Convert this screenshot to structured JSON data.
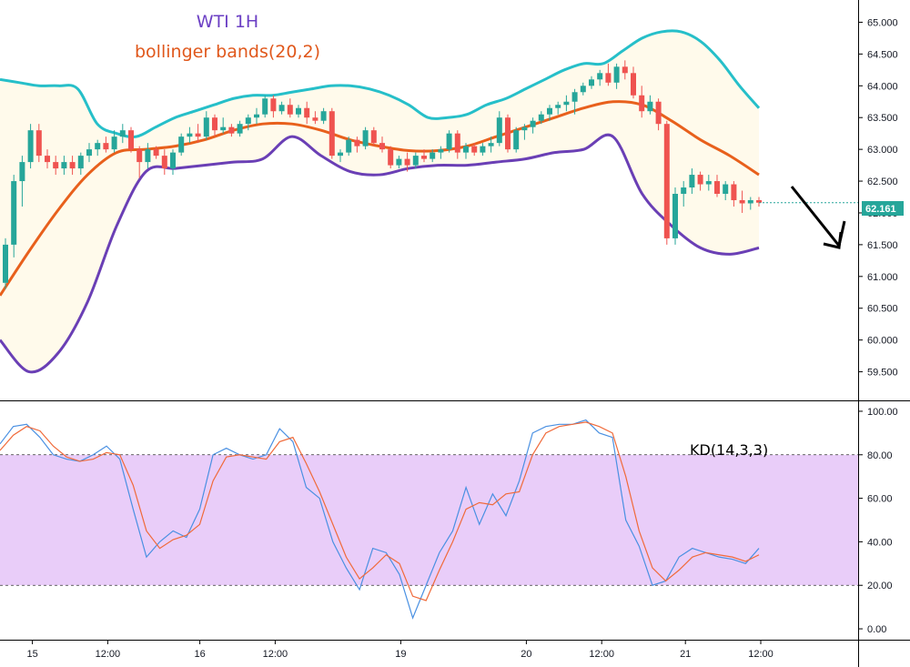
{
  "colors": {
    "upper_band": "#26bfc9",
    "middle_band": "#e8601c",
    "lower_band": "#6a3fb5",
    "band_fill": "#fffaeb",
    "candle_up": "#26a69a",
    "candle_down": "#ef5350",
    "k_line": "#4a90e2",
    "d_line": "#f06a3a",
    "kd_zone": "#e9cdf9",
    "price_label_bg": "#26a69a",
    "title1": "#6b3fc4",
    "title2": "#e0581c"
  },
  "chart_data": [
    {
      "type": "candlestick",
      "title": "WTI 1H",
      "subtitle": "bollinger bands(20,2)",
      "ylim": [
        59.05,
        65.35
      ],
      "y_ticks": [
        "59.500",
        "60.000",
        "60.500",
        "61.000",
        "61.500",
        "62.000",
        "62.500",
        "63.000",
        "63.500",
        "64.000",
        "64.500",
        "65.000"
      ],
      "current_price": "62.161",
      "x_labels": [
        "15",
        "12:00",
        "16",
        "12:00",
        "19",
        "20",
        "12:00",
        "21",
        "12:00"
      ],
      "x_label_bars": [
        3,
        12,
        23,
        32,
        47,
        62,
        71,
        81,
        90
      ],
      "candles": [
        [
          60.9,
          61.6,
          60.8,
          61.5
        ],
        [
          61.5,
          62.6,
          61.3,
          62.5
        ],
        [
          62.5,
          62.9,
          62.1,
          62.8
        ],
        [
          62.8,
          63.4,
          62.7,
          63.3
        ],
        [
          63.3,
          63.4,
          62.8,
          62.9
        ],
        [
          62.9,
          63.0,
          62.7,
          62.8
        ],
        [
          62.8,
          62.9,
          62.6,
          62.7
        ],
        [
          62.7,
          62.9,
          62.6,
          62.8
        ],
        [
          62.8,
          62.9,
          62.6,
          62.7
        ],
        [
          62.7,
          62.95,
          62.6,
          62.9
        ],
        [
          62.9,
          63.1,
          62.8,
          63.0
        ],
        [
          63.0,
          63.15,
          62.9,
          63.1
        ],
        [
          63.1,
          63.2,
          62.95,
          63.0
        ],
        [
          63.0,
          63.3,
          62.95,
          63.2
        ],
        [
          63.2,
          63.4,
          63.1,
          63.3
        ],
        [
          63.3,
          63.35,
          62.95,
          63.0
        ],
        [
          63.0,
          63.05,
          62.55,
          62.8
        ],
        [
          62.8,
          63.1,
          62.7,
          63.0
        ],
        [
          63.0,
          63.05,
          62.85,
          62.9
        ],
        [
          62.9,
          63.0,
          62.6,
          62.7
        ],
        [
          62.7,
          63.0,
          62.6,
          62.95
        ],
        [
          62.95,
          63.25,
          62.9,
          63.2
        ],
        [
          63.2,
          63.35,
          63.1,
          63.25
        ],
        [
          63.25,
          63.4,
          63.1,
          63.2
        ],
        [
          63.2,
          63.6,
          63.15,
          63.5
        ],
        [
          63.5,
          63.55,
          63.2,
          63.3
        ],
        [
          63.3,
          63.5,
          63.25,
          63.35
        ],
        [
          63.35,
          63.4,
          63.2,
          63.25
        ],
        [
          63.25,
          63.45,
          63.2,
          63.4
        ],
        [
          63.4,
          63.55,
          63.3,
          63.5
        ],
        [
          63.5,
          63.65,
          63.4,
          63.55
        ],
        [
          63.55,
          63.85,
          63.5,
          63.8
        ],
        [
          63.8,
          63.85,
          63.5,
          63.6
        ],
        [
          63.6,
          63.75,
          63.55,
          63.7
        ],
        [
          63.7,
          63.8,
          63.5,
          63.55
        ],
        [
          63.55,
          63.7,
          63.5,
          63.65
        ],
        [
          63.65,
          63.75,
          63.4,
          63.5
        ],
        [
          63.5,
          63.6,
          63.4,
          63.45
        ],
        [
          63.45,
          63.65,
          63.4,
          63.6
        ],
        [
          63.6,
          63.65,
          62.85,
          62.9
        ],
        [
          62.9,
          63.0,
          62.8,
          62.95
        ],
        [
          62.95,
          63.2,
          62.9,
          63.15
        ],
        [
          63.15,
          63.2,
          62.95,
          63.05
        ],
        [
          63.05,
          63.35,
          63.0,
          63.3
        ],
        [
          63.3,
          63.35,
          63.05,
          63.1
        ],
        [
          63.1,
          63.2,
          62.95,
          63.0
        ],
        [
          63.0,
          63.05,
          62.7,
          62.75
        ],
        [
          62.75,
          62.9,
          62.7,
          62.85
        ],
        [
          62.85,
          62.95,
          62.65,
          62.75
        ],
        [
          62.75,
          62.95,
          62.7,
          62.9
        ],
        [
          62.9,
          63.0,
          62.8,
          62.85
        ],
        [
          62.85,
          63.0,
          62.8,
          62.95
        ],
        [
          62.95,
          63.05,
          62.85,
          63.0
        ],
        [
          63.0,
          63.3,
          62.95,
          63.25
        ],
        [
          63.25,
          63.3,
          62.85,
          62.95
        ],
        [
          62.95,
          63.1,
          62.85,
          63.05
        ],
        [
          63.05,
          63.1,
          62.9,
          62.95
        ],
        [
          62.95,
          63.1,
          62.9,
          63.05
        ],
        [
          63.05,
          63.2,
          62.95,
          63.1
        ],
        [
          63.1,
          63.6,
          63.05,
          63.5
        ],
        [
          63.5,
          63.55,
          62.95,
          63.0
        ],
        [
          63.0,
          63.35,
          62.95,
          63.3
        ],
        [
          63.3,
          63.4,
          63.15,
          63.35
        ],
        [
          63.35,
          63.5,
          63.25,
          63.45
        ],
        [
          63.45,
          63.6,
          63.4,
          63.55
        ],
        [
          63.55,
          63.7,
          63.45,
          63.65
        ],
        [
          63.65,
          63.75,
          63.55,
          63.7
        ],
        [
          63.7,
          63.85,
          63.6,
          63.75
        ],
        [
          63.75,
          63.95,
          63.55,
          63.9
        ],
        [
          63.9,
          64.05,
          63.85,
          64.0
        ],
        [
          64.0,
          64.15,
          63.95,
          64.1
        ],
        [
          64.1,
          64.25,
          64.0,
          64.2
        ],
        [
          64.2,
          64.35,
          64.0,
          64.05
        ],
        [
          64.05,
          64.35,
          63.95,
          64.3
        ],
        [
          64.3,
          64.4,
          64.1,
          64.2
        ],
        [
          64.2,
          64.3,
          63.8,
          63.85
        ],
        [
          63.85,
          64.0,
          63.5,
          63.6
        ],
        [
          63.6,
          63.85,
          63.55,
          63.75
        ],
        [
          63.75,
          63.8,
          63.3,
          63.4
        ],
        [
          63.4,
          63.45,
          61.5,
          61.6
        ],
        [
          61.6,
          62.4,
          61.5,
          62.3
        ],
        [
          62.3,
          62.5,
          62.1,
          62.4
        ],
        [
          62.4,
          62.7,
          62.3,
          62.6
        ],
        [
          62.6,
          62.65,
          62.35,
          62.45
        ],
        [
          62.45,
          62.6,
          62.35,
          62.5
        ],
        [
          62.5,
          62.6,
          62.25,
          62.3
        ],
        [
          62.3,
          62.5,
          62.2,
          62.45
        ],
        [
          62.45,
          62.5,
          62.1,
          62.2
        ],
        [
          62.2,
          62.35,
          62.0,
          62.15
        ],
        [
          62.15,
          62.25,
          62.05,
          62.2
        ],
        [
          62.2,
          62.25,
          62.1,
          62.161
        ]
      ],
      "upper_band": [
        64.1,
        64.05,
        64.0,
        64.0,
        63.95,
        63.4,
        63.25,
        63.2,
        63.35,
        63.5,
        63.6,
        63.7,
        63.8,
        63.85,
        63.85,
        63.9,
        63.95,
        64.0,
        64.0,
        63.95,
        63.85,
        63.7,
        63.5,
        63.5,
        63.55,
        63.7,
        63.8,
        63.95,
        64.1,
        64.25,
        64.35,
        64.35,
        64.55,
        64.75,
        64.85,
        64.85,
        64.7,
        64.4,
        64.0,
        63.65
      ],
      "middle_band": [
        60.7,
        61.4,
        62.05,
        62.6,
        62.95,
        63.0,
        63.05,
        63.15,
        63.3,
        63.4,
        63.4,
        63.3,
        63.15,
        63.05,
        62.98,
        62.98,
        63.05,
        63.2,
        63.35,
        63.5,
        63.65,
        63.75,
        63.7,
        63.45,
        63.15,
        62.9,
        62.6
      ],
      "lower_band": [
        60.0,
        59.5,
        59.8,
        60.6,
        61.8,
        62.65,
        62.7,
        62.75,
        62.8,
        62.85,
        63.2,
        62.9,
        62.65,
        62.6,
        62.7,
        62.75,
        62.75,
        62.8,
        62.85,
        62.95,
        63.0,
        63.2,
        62.3,
        61.8,
        61.45,
        61.35,
        61.45
      ],
      "band_knots_x": [
        0.0,
        0.016,
        0.05,
        0.095,
        0.135,
        0.163,
        0.175,
        0.2,
        0.22,
        0.25,
        0.3,
        0.36,
        0.4,
        0.44,
        0.49,
        0.52,
        0.545,
        0.56,
        0.6,
        0.63,
        0.66,
        0.7,
        0.74,
        0.76,
        0.8,
        0.82,
        0.86,
        0.87,
        0.88,
        0.9,
        0.92,
        0.93,
        0.945,
        0.955,
        0.965,
        0.98,
        0.995,
        1.0,
        1.0,
        1.0
      ]
    },
    {
      "type": "line",
      "title": "KD(14,3,3)",
      "ylim": [
        -5,
        105
      ],
      "y_ticks": [
        "0.00",
        "20.00",
        "40.00",
        "60.00",
        "80.00",
        "100.00"
      ],
      "zone": [
        20,
        80
      ],
      "series": [
        {
          "role": "K",
          "values": [
            85,
            93,
            94,
            88,
            80,
            78,
            77,
            80,
            84,
            78,
            55,
            33,
            40,
            45,
            42,
            55,
            80,
            83,
            80,
            78,
            80,
            92,
            86,
            65,
            60,
            40,
            28,
            18,
            37,
            35,
            25,
            5,
            20,
            35,
            45,
            65,
            48,
            62,
            52,
            68,
            90,
            93,
            94,
            94,
            96,
            90,
            88,
            50,
            38,
            20,
            22,
            33,
            37,
            35,
            33,
            32,
            30,
            37
          ]
        },
        {
          "role": "D",
          "values": [
            82,
            89,
            93,
            91,
            84,
            79,
            77,
            78,
            81,
            80,
            66,
            45,
            37,
            41,
            43,
            48,
            68,
            79,
            80,
            79,
            78,
            86,
            88,
            76,
            63,
            48,
            33,
            23,
            28,
            34,
            30,
            15,
            13,
            27,
            40,
            55,
            58,
            57,
            62,
            63,
            80,
            90,
            93,
            94,
            95,
            93,
            90,
            70,
            45,
            28,
            22,
            27,
            33,
            35,
            34,
            33,
            31,
            34
          ]
        }
      ]
    }
  ]
}
